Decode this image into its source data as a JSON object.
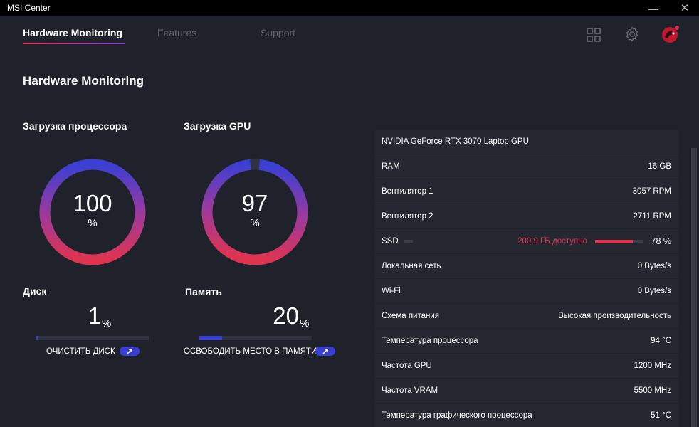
{
  "window": {
    "title": "MSI Center",
    "minimize_glyph": "—",
    "close_glyph": "✕"
  },
  "nav": {
    "tabs": [
      {
        "label": "Hardware Monitoring",
        "active": true
      },
      {
        "label": "Features",
        "active": false
      },
      {
        "label": "Support",
        "active": false
      }
    ],
    "icons": [
      "grid-icon",
      "gear-icon",
      "dragon-avatar-icon"
    ]
  },
  "page": {
    "title": "Hardware Monitoring"
  },
  "cpu": {
    "label": "Загрузка процессора",
    "value": "100",
    "unit": "%",
    "percent": 100
  },
  "gpu": {
    "label": "Загрузка GPU",
    "value": "97",
    "unit": "%",
    "percent": 97
  },
  "disk": {
    "label": "Диск",
    "value": "1",
    "unit": "%",
    "percent": 1,
    "action_label": "ОЧИСТИТЬ ДИСК"
  },
  "memory": {
    "label": "Память",
    "value": "20",
    "unit": "%",
    "percent": 20,
    "action_label": "ОСВОБОДИТЬ МЕСТО В ПАМЯТИ"
  },
  "info": {
    "gpu_name": "NVIDIA GeForce RTX 3070 Laptop GPU",
    "rows": [
      {
        "label": "RAM",
        "value": "16 GB"
      },
      {
        "label": "Вентилятор 1",
        "value": "3057 RPM"
      },
      {
        "label": "Вентилятор 2",
        "value": "2711 RPM"
      }
    ],
    "ssd": {
      "label": "SSD",
      "free": "200,9 ГБ доступно",
      "value": "78 %",
      "percent": 78
    },
    "rows2": [
      {
        "label": "Локальная сеть",
        "value": "0 Bytes/s"
      },
      {
        "label": "Wi-Fi",
        "value": "0 Bytes/s"
      },
      {
        "label": "Схема питания",
        "value": "Высокая производительность"
      },
      {
        "label": "Температура процессора",
        "value": "94 °C"
      },
      {
        "label": "Частота GPU",
        "value": "1200 MHz"
      },
      {
        "label": "Частота VRAM",
        "value": "5500 MHz"
      },
      {
        "label": "Температура графического процессора",
        "value": "51 °C"
      }
    ]
  },
  "colors": {
    "accent_red": "#e0334f",
    "accent_blue": "#3a3fd4",
    "background": "#20222b",
    "row_background": "#252731"
  }
}
